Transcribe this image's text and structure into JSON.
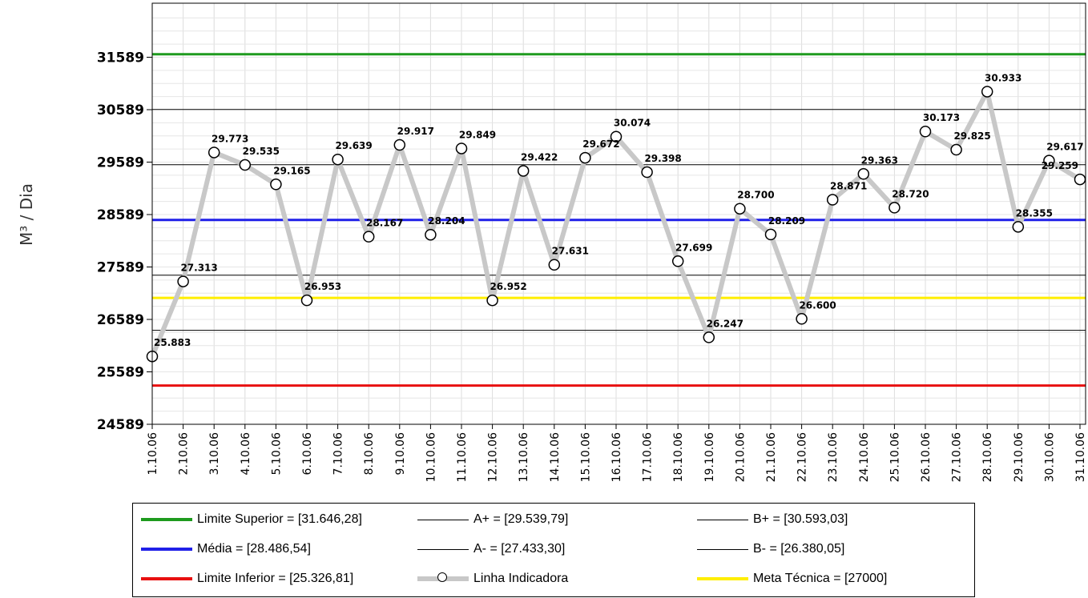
{
  "chart_data": {
    "type": "line",
    "ylabel": "M³ / Dia",
    "ylim": [
      24589,
      32589
    ],
    "yticks": [
      24589,
      25589,
      26589,
      27589,
      28589,
      29589,
      30589,
      31589
    ],
    "categories": [
      "1.10.06",
      "2.10.06",
      "3.10.06",
      "4.10.06",
      "5.10.06",
      "6.10.06",
      "7.10.06",
      "8.10.06",
      "9.10.06",
      "10.10.06",
      "11.10.06",
      "12.10.06",
      "13.10.06",
      "14.10.06",
      "15.10.06",
      "16.10.06",
      "17.10.06",
      "18.10.06",
      "19.10.06",
      "20.10.06",
      "21.10.06",
      "22.10.06",
      "23.10.06",
      "24.10.06",
      "25.10.06",
      "26.10.06",
      "27.10.06",
      "28.10.06",
      "29.10.06",
      "30.10.06",
      "31.10.06"
    ],
    "values": [
      25883,
      27313,
      29773,
      29535,
      29165,
      26953,
      29639,
      28167,
      29917,
      28204,
      29849,
      26952,
      29422,
      27631,
      29672,
      30074,
      29398,
      27699,
      26247,
      28700,
      28209,
      26600,
      28871,
      29363,
      28720,
      30173,
      29825,
      30933,
      28355,
      29617,
      29259
    ],
    "value_labels": [
      "25.883",
      "27.313",
      "29.773",
      "29.535",
      "29.165",
      "26.953",
      "29.639",
      "28.167",
      "29.917",
      "28.204",
      "29.849",
      "26.952",
      "29.422",
      "27.631",
      "29.672",
      "30.074",
      "29.398",
      "27.699",
      "26.247",
      "28.700",
      "28.209",
      "26.600",
      "28.871",
      "29.363",
      "28.720",
      "30.173",
      "29.825",
      "30.933",
      "28.355",
      "29.617",
      "29.259"
    ],
    "grid": true,
    "legend_position": "bottom",
    "reference_lines": [
      {
        "key": "ls",
        "name": "Limite Superior = [31.646,28]",
        "value": 31646.28,
        "color": "#1e9b1e",
        "width": 3
      },
      {
        "key": "bp",
        "name": "B+ = [30.593,03]",
        "value": 30593.03,
        "color": "#000000",
        "width": 1
      },
      {
        "key": "ap",
        "name": "A+ = [29.539,79]",
        "value": 29539.79,
        "color": "#000000",
        "width": 1
      },
      {
        "key": "media",
        "name": "Média = [28.486,54]",
        "value": 28486.54,
        "color": "#2020e8",
        "width": 3
      },
      {
        "key": "am",
        "name": "A- = [27.433,30]",
        "value": 27433.3,
        "color": "#000000",
        "width": 1
      },
      {
        "key": "meta",
        "name": "Meta Técnica = [27000]",
        "value": 27000,
        "color": "#ffee00",
        "width": 3
      },
      {
        "key": "bm",
        "name": "B- = [26.380,05]",
        "value": 26380.05,
        "color": "#000000",
        "width": 1
      },
      {
        "key": "li",
        "name": "Limite Inferior = [25.326,81]",
        "value": 25326.81,
        "color": "#e81010",
        "width": 3
      }
    ],
    "series_line": {
      "name": "Linha Indicadora",
      "color": "#c8c8c8"
    }
  },
  "legend": {
    "col1": [
      "Limite Superior = [31.646,28]",
      "Média = [28.486,54]",
      "Limite Inferior = [25.326,81]"
    ],
    "col2": [
      "A+ = [29.539,79]",
      "A- = [27.433,30]",
      "Linha Indicadora"
    ],
    "col3": [
      "B+ = [30.593,03]",
      "B- = [26.380,05]",
      "Meta Técnica = [27000]"
    ]
  }
}
